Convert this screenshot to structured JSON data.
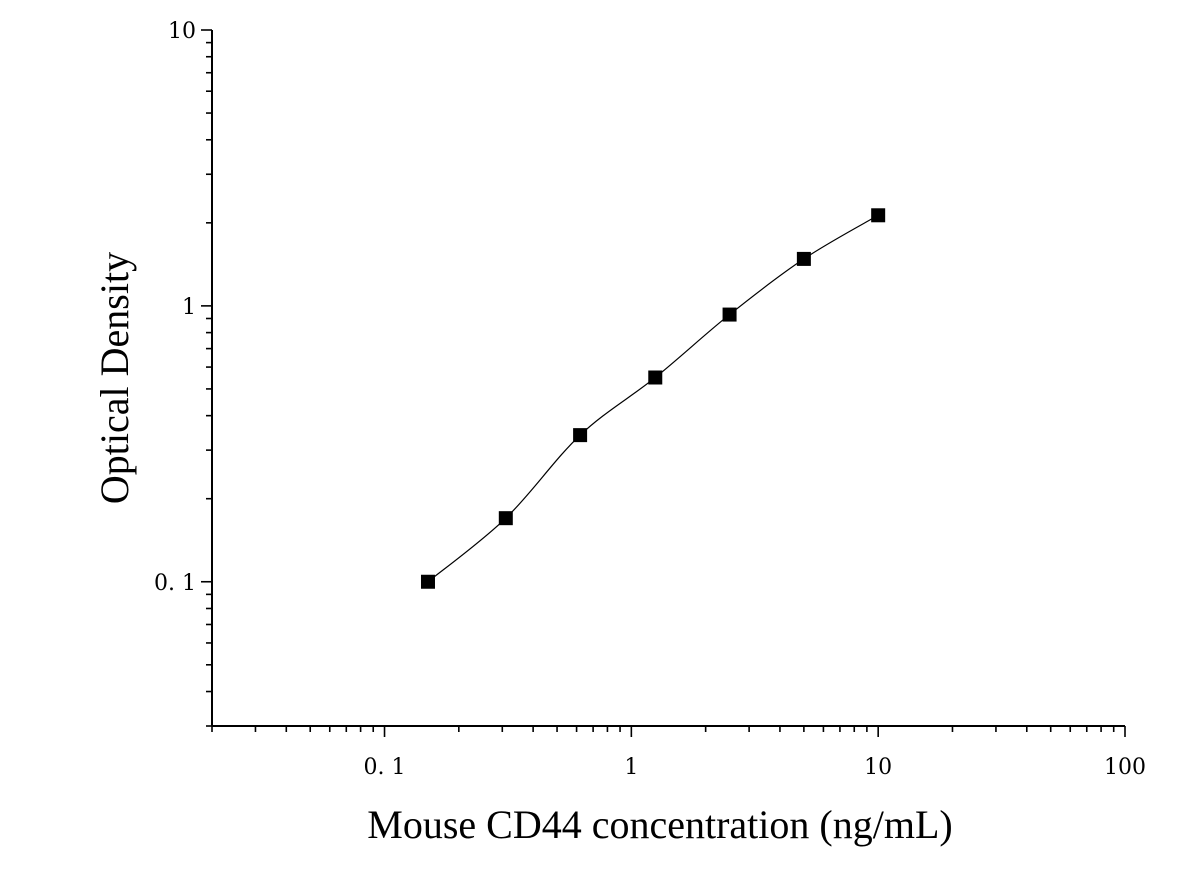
{
  "chart_data": {
    "type": "scatter",
    "title": "",
    "xlabel": "Mouse CD44 concentration (ng/mL)",
    "ylabel": "Optical Density",
    "x_scale": "log",
    "y_scale": "log",
    "xlim": [
      0.02,
      100
    ],
    "ylim": [
      0.03,
      10
    ],
    "x_tick_labels": [
      "0. 1",
      "1",
      "10",
      "100"
    ],
    "x_tick_values": [
      0.1,
      1,
      10,
      100
    ],
    "y_tick_labels": [
      "0. 1",
      "1",
      "10"
    ],
    "y_tick_values": [
      0.1,
      1,
      10
    ],
    "grid": false,
    "legend": "none",
    "marker": "square",
    "fit_curve": true,
    "series": [
      {
        "x": [
          0.15,
          0.31,
          0.62,
          1.25,
          2.5,
          5,
          10
        ],
        "y": [
          0.1,
          0.17,
          0.34,
          0.55,
          0.93,
          1.48,
          2.13
        ]
      }
    ]
  }
}
